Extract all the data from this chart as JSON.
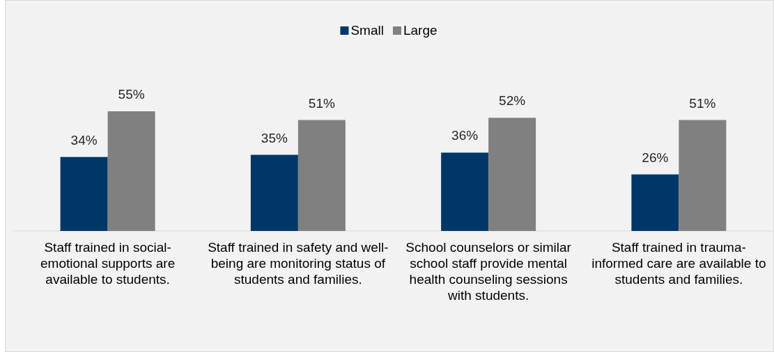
{
  "chart_data": {
    "type": "bar",
    "categories": [
      "Staff trained in social-emotional supports are available to students.",
      "Staff trained in safety and well-being are monitoring status of students and families.",
      "School counselors or similar school staff provide mental health counseling sessions with students.",
      "Staff trained in trauma-informed care are available to students and families."
    ],
    "series": [
      {
        "name": "Small",
        "color": "#003768",
        "values": [
          34,
          35,
          36,
          26
        ],
        "value_labels": [
          "34%",
          "35%",
          "36%",
          "26%"
        ]
      },
      {
        "name": "Large",
        "color": "#808080",
        "values": [
          55,
          51,
          52,
          51
        ],
        "value_labels": [
          "55%",
          "51%",
          "52%",
          "51%"
        ]
      }
    ],
    "legend": "top"
  }
}
